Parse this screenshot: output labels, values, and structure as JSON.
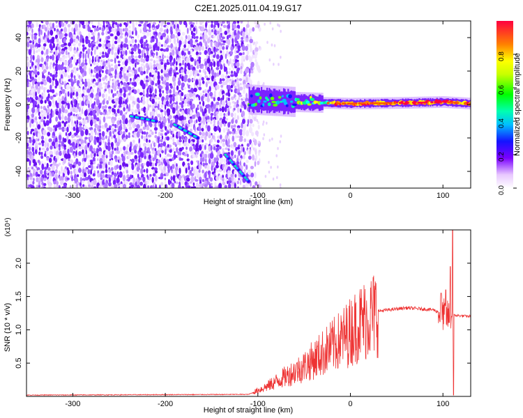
{
  "title": "C2E1.2025.011.04.19.G17",
  "chart_data": [
    {
      "type": "heatmap",
      "xlabel": "Height of straight line (km)",
      "ylabel": "Frequency (Hz)",
      "xlim": [
        -350,
        130
      ],
      "ylim": [
        -50,
        50
      ],
      "x_ticks": [
        -300,
        -200,
        -100,
        0,
        100
      ],
      "y_ticks": [
        -40,
        -20,
        0,
        20,
        40
      ],
      "noise_region_x": [
        -350,
        -105
      ],
      "signal_band": {
        "x_start": -110,
        "x_end": 130,
        "center_freq": [
          {
            "x": -110,
            "y": 3
          },
          {
            "x": -60,
            "y": 1.5
          },
          {
            "x": 0,
            "y": 0.5
          },
          {
            "x": 60,
            "y": 1
          },
          {
            "x": 100,
            "y": 1.5
          },
          {
            "x": 130,
            "y": 0.5
          }
        ]
      },
      "chirp_segments": [
        [
          {
            "x": -237,
            "y": -7
          },
          {
            "x": -210,
            "y": -10
          }
        ],
        [
          {
            "x": -190,
            "y": -12
          },
          {
            "x": -165,
            "y": -20
          }
        ],
        [
          {
            "x": -135,
            "y": -30
          },
          {
            "x": -110,
            "y": -46
          }
        ]
      ],
      "colorbar": {
        "label": "Normalized spectral amplitude",
        "ticks": [
          "0.0",
          "0.2",
          "0.4",
          "0.6",
          "0.8"
        ]
      },
      "grid": false
    },
    {
      "type": "line",
      "xlabel": "Height of straight line (km)",
      "ylabel": "SNR (10 * v/v)",
      "scale_label": "(x10⁴)",
      "xlim": [
        -350,
        130
      ],
      "ylim": [
        0,
        2.5
      ],
      "x_ticks": [
        -300,
        -200,
        -100,
        0,
        100
      ],
      "y_ticks": [
        "0.5",
        "1.0",
        "1.5",
        "2.0"
      ],
      "series_color": "#ee3333",
      "envelope": [
        {
          "x": -350,
          "y": 0.02
        },
        {
          "x": -110,
          "y": 0.03
        },
        {
          "x": -90,
          "y": 0.15
        },
        {
          "x": -70,
          "y": 0.3
        },
        {
          "x": -50,
          "y": 0.45
        },
        {
          "x": -30,
          "y": 0.65
        },
        {
          "x": -10,
          "y": 0.85
        },
        {
          "x": 10,
          "y": 1.1
        },
        {
          "x": 30,
          "y": 1.28
        },
        {
          "x": 60,
          "y": 1.33
        },
        {
          "x": 90,
          "y": 1.3
        },
        {
          "x": 105,
          "y": 1.2
        },
        {
          "x": 110,
          "y": 1.22
        },
        {
          "x": 130,
          "y": 1.2
        }
      ],
      "spikes": [
        {
          "x": 108,
          "y": 1.95
        },
        {
          "x": 110.5,
          "y": 2.5
        },
        {
          "x": 111.5,
          "y": 0.02
        },
        {
          "x": 98,
          "y": 1.55
        },
        {
          "x": 103,
          "y": 1.6
        }
      ],
      "grid": false
    }
  ]
}
